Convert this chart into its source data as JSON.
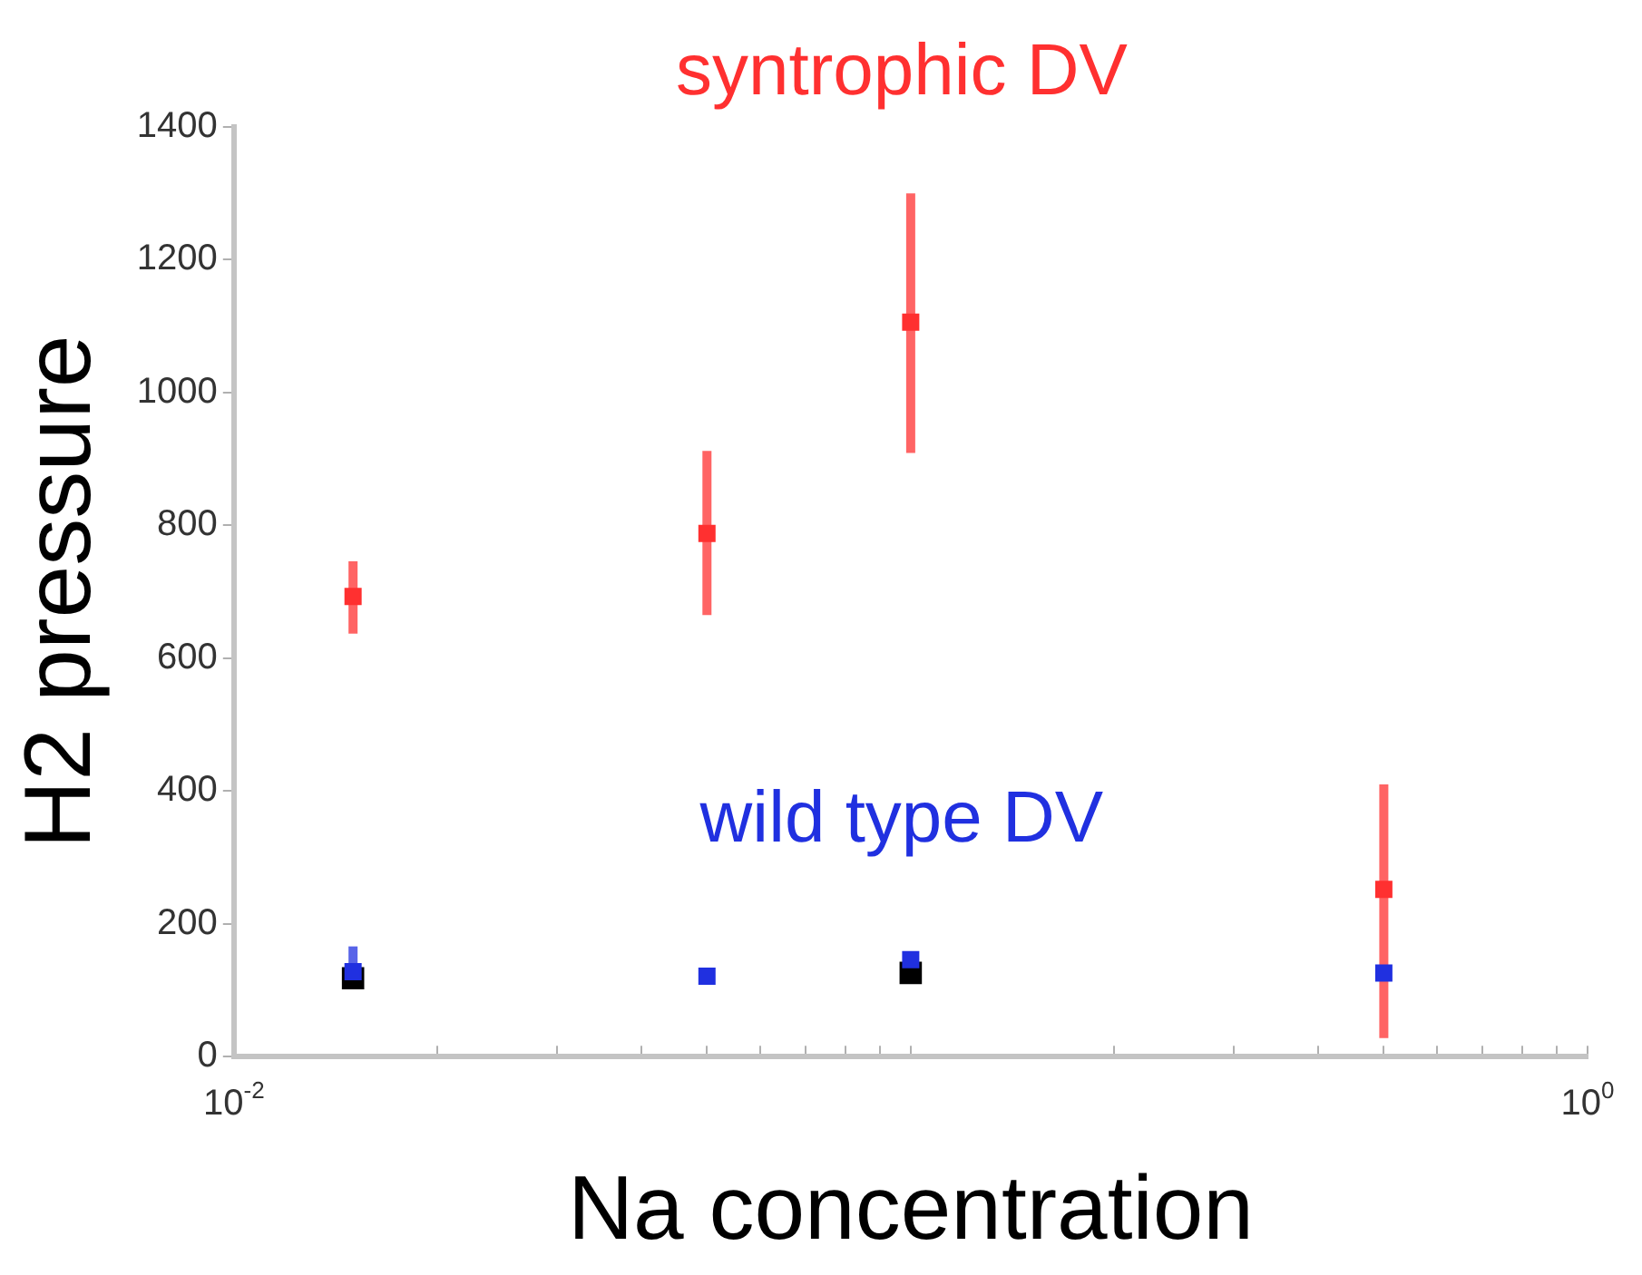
{
  "chart_data": {
    "type": "scatter",
    "xlabel": "Na concentration",
    "ylabel": "H2 pressure",
    "log": "x",
    "grid": false,
    "legend": false,
    "marker": "square",
    "xlim": [
      0.01,
      1
    ],
    "xticks": [
      {
        "value": 0.01,
        "label": "10$^{-2}$"
      },
      {
        "value": 0.02,
        "label": null
      },
      {
        "value": 0.03,
        "label": null
      },
      {
        "value": 0.04,
        "label": null
      },
      {
        "value": 0.05,
        "label": null
      },
      {
        "value": 0.06,
        "label": null
      },
      {
        "value": 0.07,
        "label": null
      },
      {
        "value": 0.08,
        "label": null
      },
      {
        "value": 0.09,
        "label": null
      },
      {
        "value": 0.1,
        "label": null
      },
      {
        "value": 0.2,
        "label": null
      },
      {
        "value": 0.3,
        "label": null
      },
      {
        "value": 0.4,
        "label": null
      },
      {
        "value": 0.5,
        "label": null
      },
      {
        "value": 0.6,
        "label": null
      },
      {
        "value": 0.7,
        "label": null
      },
      {
        "value": 0.8,
        "label": null
      },
      {
        "value": 0.9,
        "label": null
      },
      {
        "value": 1,
        "label": "10$^{0}$"
      }
    ],
    "ylim": [
      0,
      1400
    ],
    "yticks": [
      0,
      200,
      400,
      600,
      800,
      1000,
      1200,
      1400
    ],
    "series": [
      {
        "color": "#000000",
        "x": [
          0.015,
          0.1
        ],
        "values": [
          118,
          126
        ]
      },
      {
        "name": "wild type DV",
        "color": "#2030e0",
        "x": [
          0.015,
          0.05,
          0.1,
          0.5
        ],
        "values": [
          128,
          121,
          146,
          126
        ],
        "errors": [
          [
            112,
            166
          ],
          null,
          null,
          null
        ]
      },
      {
        "name": "syntrophic DV",
        "color": "#ff3030",
        "x": [
          0.015,
          0.05,
          0.1,
          0.5
        ],
        "values": [
          693,
          788,
          1106,
          252
        ],
        "errors": [
          [
            637,
            746
          ],
          [
            665,
            912
          ],
          [
            909,
            1300
          ],
          [
            28,
            410
          ]
        ]
      }
    ]
  }
}
